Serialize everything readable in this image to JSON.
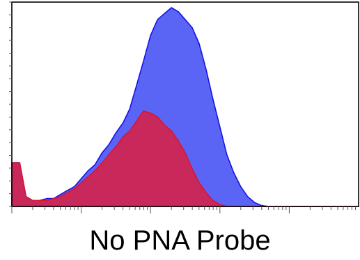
{
  "caption": "No PNA Probe",
  "chart_data": {
    "type": "area",
    "title": "",
    "xlabel": "",
    "ylabel": "",
    "x_scale": "log",
    "xlim": [
      1,
      100000
    ],
    "ylim": [
      0,
      100
    ],
    "grid": false,
    "legend": "none",
    "series": [
      {
        "color": "#5a64f5",
        "stroke": "#1414e6",
        "x": [
          1,
          1.3,
          1.6,
          2,
          2.5,
          3.2,
          4,
          5,
          6.3,
          8,
          10,
          12.6,
          15.8,
          20,
          25,
          31.6,
          40,
          50,
          63,
          79,
          100,
          126,
          158,
          200,
          251,
          316,
          398,
          501,
          631,
          794,
          1000,
          1259,
          1585,
          1995,
          2512,
          3162,
          3981,
          5012,
          6310,
          7943,
          10000,
          100000
        ],
        "values": [
          22,
          22,
          5,
          3,
          3,
          4,
          4,
          6,
          8,
          10,
          14,
          18,
          21,
          27,
          31,
          37,
          42,
          49,
          61,
          73,
          86,
          94,
          97,
          100,
          98,
          94,
          90,
          82,
          69,
          54,
          40,
          26,
          17,
          10,
          5,
          2,
          0.5,
          0,
          0,
          0,
          0,
          0
        ]
      },
      {
        "color": "#c8285a",
        "stroke": "#dc1432",
        "x": [
          1,
          1.3,
          1.6,
          2,
          2.5,
          3.2,
          4,
          5,
          6.3,
          8,
          10,
          12.6,
          15.8,
          20,
          25,
          31.6,
          40,
          50,
          63,
          79,
          100,
          126,
          158,
          200,
          251,
          316,
          398,
          501,
          631,
          794,
          1000,
          1259,
          1585,
          2000,
          100000
        ],
        "values": [
          22,
          22,
          5,
          3,
          3,
          3,
          4,
          5,
          7,
          9,
          12,
          15,
          18,
          22,
          26,
          30,
          35,
          38,
          43,
          48,
          47,
          45,
          41,
          38,
          33,
          27,
          19,
          12,
          7,
          3,
          1,
          0,
          0,
          0,
          0
        ]
      }
    ]
  }
}
